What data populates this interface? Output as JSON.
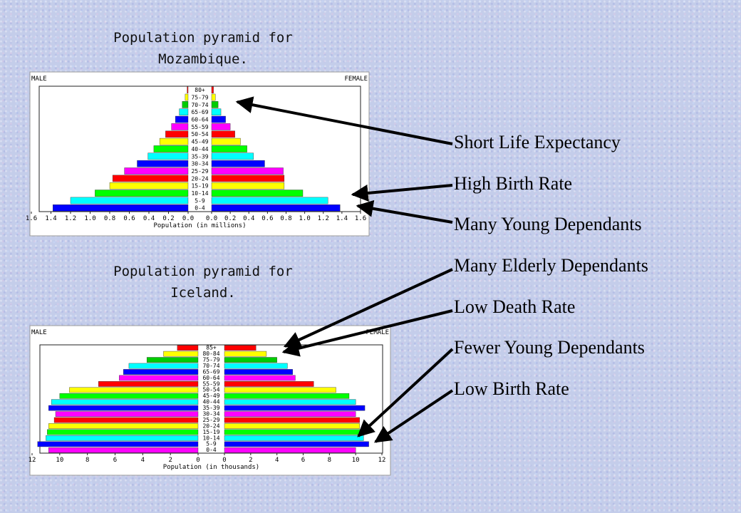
{
  "chart_data": [
    {
      "type": "bar",
      "orientation": "horizontal-pyramid",
      "title": "Population pyramid for Mozambique.",
      "left_label": "MALE",
      "right_label": "FEMALE",
      "xlabel": "Population (in millions)",
      "xlim": [
        0,
        1.6
      ],
      "ticks": [
        0.0,
        0.2,
        0.4,
        0.6,
        0.8,
        1.0,
        1.2,
        1.4,
        1.6
      ],
      "tick_labels": [
        "0.0",
        "0.2",
        "0.4",
        "0.6",
        "0.8",
        "1.0",
        "1.2",
        "1.4",
        "1.6"
      ],
      "categories": [
        "80+",
        "75-79",
        "70-74",
        "65-69",
        "60-64",
        "55-59",
        "50-54",
        "45-49",
        "40-44",
        "35-39",
        "30-34",
        "25-29",
        "20-24",
        "15-19",
        "10-14",
        "5-9",
        "0-4"
      ],
      "series": [
        {
          "name": "MALE",
          "values": [
            0.01,
            0.03,
            0.06,
            0.09,
            0.13,
            0.17,
            0.23,
            0.29,
            0.35,
            0.41,
            0.52,
            0.65,
            0.77,
            0.8,
            0.95,
            1.2,
            1.38
          ]
        },
        {
          "name": "FEMALE",
          "values": [
            0.02,
            0.04,
            0.07,
            0.1,
            0.15,
            0.2,
            0.25,
            0.31,
            0.38,
            0.45,
            0.57,
            0.77,
            0.78,
            0.78,
            0.98,
            1.25,
            1.38
          ]
        }
      ],
      "grid": false
    },
    {
      "type": "bar",
      "orientation": "horizontal-pyramid",
      "title": "Population pyramid for Iceland.",
      "left_label": "MALE",
      "right_label": "FEMALE",
      "xlabel": "Population (in thousands)",
      "xlim": [
        0,
        12
      ],
      "ticks": [
        0,
        2,
        4,
        6,
        8,
        10,
        12
      ],
      "tick_labels": [
        "0",
        "2",
        "4",
        "6",
        "8",
        "10",
        "12"
      ],
      "categories": [
        "85+",
        "80-84",
        "75-79",
        "70-74",
        "65-69",
        "60-64",
        "55-59",
        "50-54",
        "45-49",
        "40-44",
        "35-39",
        "30-34",
        "25-29",
        "20-24",
        "15-19",
        "10-14",
        "5-9",
        "0-4"
      ],
      "series": [
        {
          "name": "MALE",
          "values": [
            1.5,
            2.5,
            3.7,
            5.0,
            5.4,
            5.7,
            7.2,
            9.3,
            10.0,
            10.6,
            10.8,
            10.3,
            10.4,
            10.8,
            10.9,
            11.0,
            11.6,
            10.8
          ]
        },
        {
          "name": "FEMALE",
          "values": [
            2.4,
            3.2,
            4.0,
            4.8,
            5.2,
            5.4,
            6.8,
            8.5,
            9.5,
            10.0,
            10.7,
            10.0,
            10.3,
            10.3,
            10.4,
            10.6,
            11.0,
            10.0
          ]
        }
      ],
      "grid": false
    }
  ],
  "bar_colors": [
    "#ff0000",
    "#ffff00",
    "#00cc00",
    "#00ffff",
    "#0000ff",
    "#ff00ff",
    "#ff0000",
    "#ffff00",
    "#00ff00",
    "#00ffff",
    "#0000ff",
    "#ff00ff",
    "#ff0000",
    "#ffff00",
    "#00ff00",
    "#00ffff",
    "#0000ff",
    "#ff00ff"
  ],
  "titles": {
    "mozambique": [
      "Population pyramid for",
      "Mozambique."
    ],
    "iceland": [
      "Population pyramid for",
      "Iceland."
    ]
  },
  "annotations": [
    "Short Life Expectancy",
    "High Birth Rate",
    "Many Young Dependants",
    "Many Elderly Dependants",
    "Low Death Rate",
    "Fewer Young Dependants",
    "Low Birth Rate"
  ]
}
